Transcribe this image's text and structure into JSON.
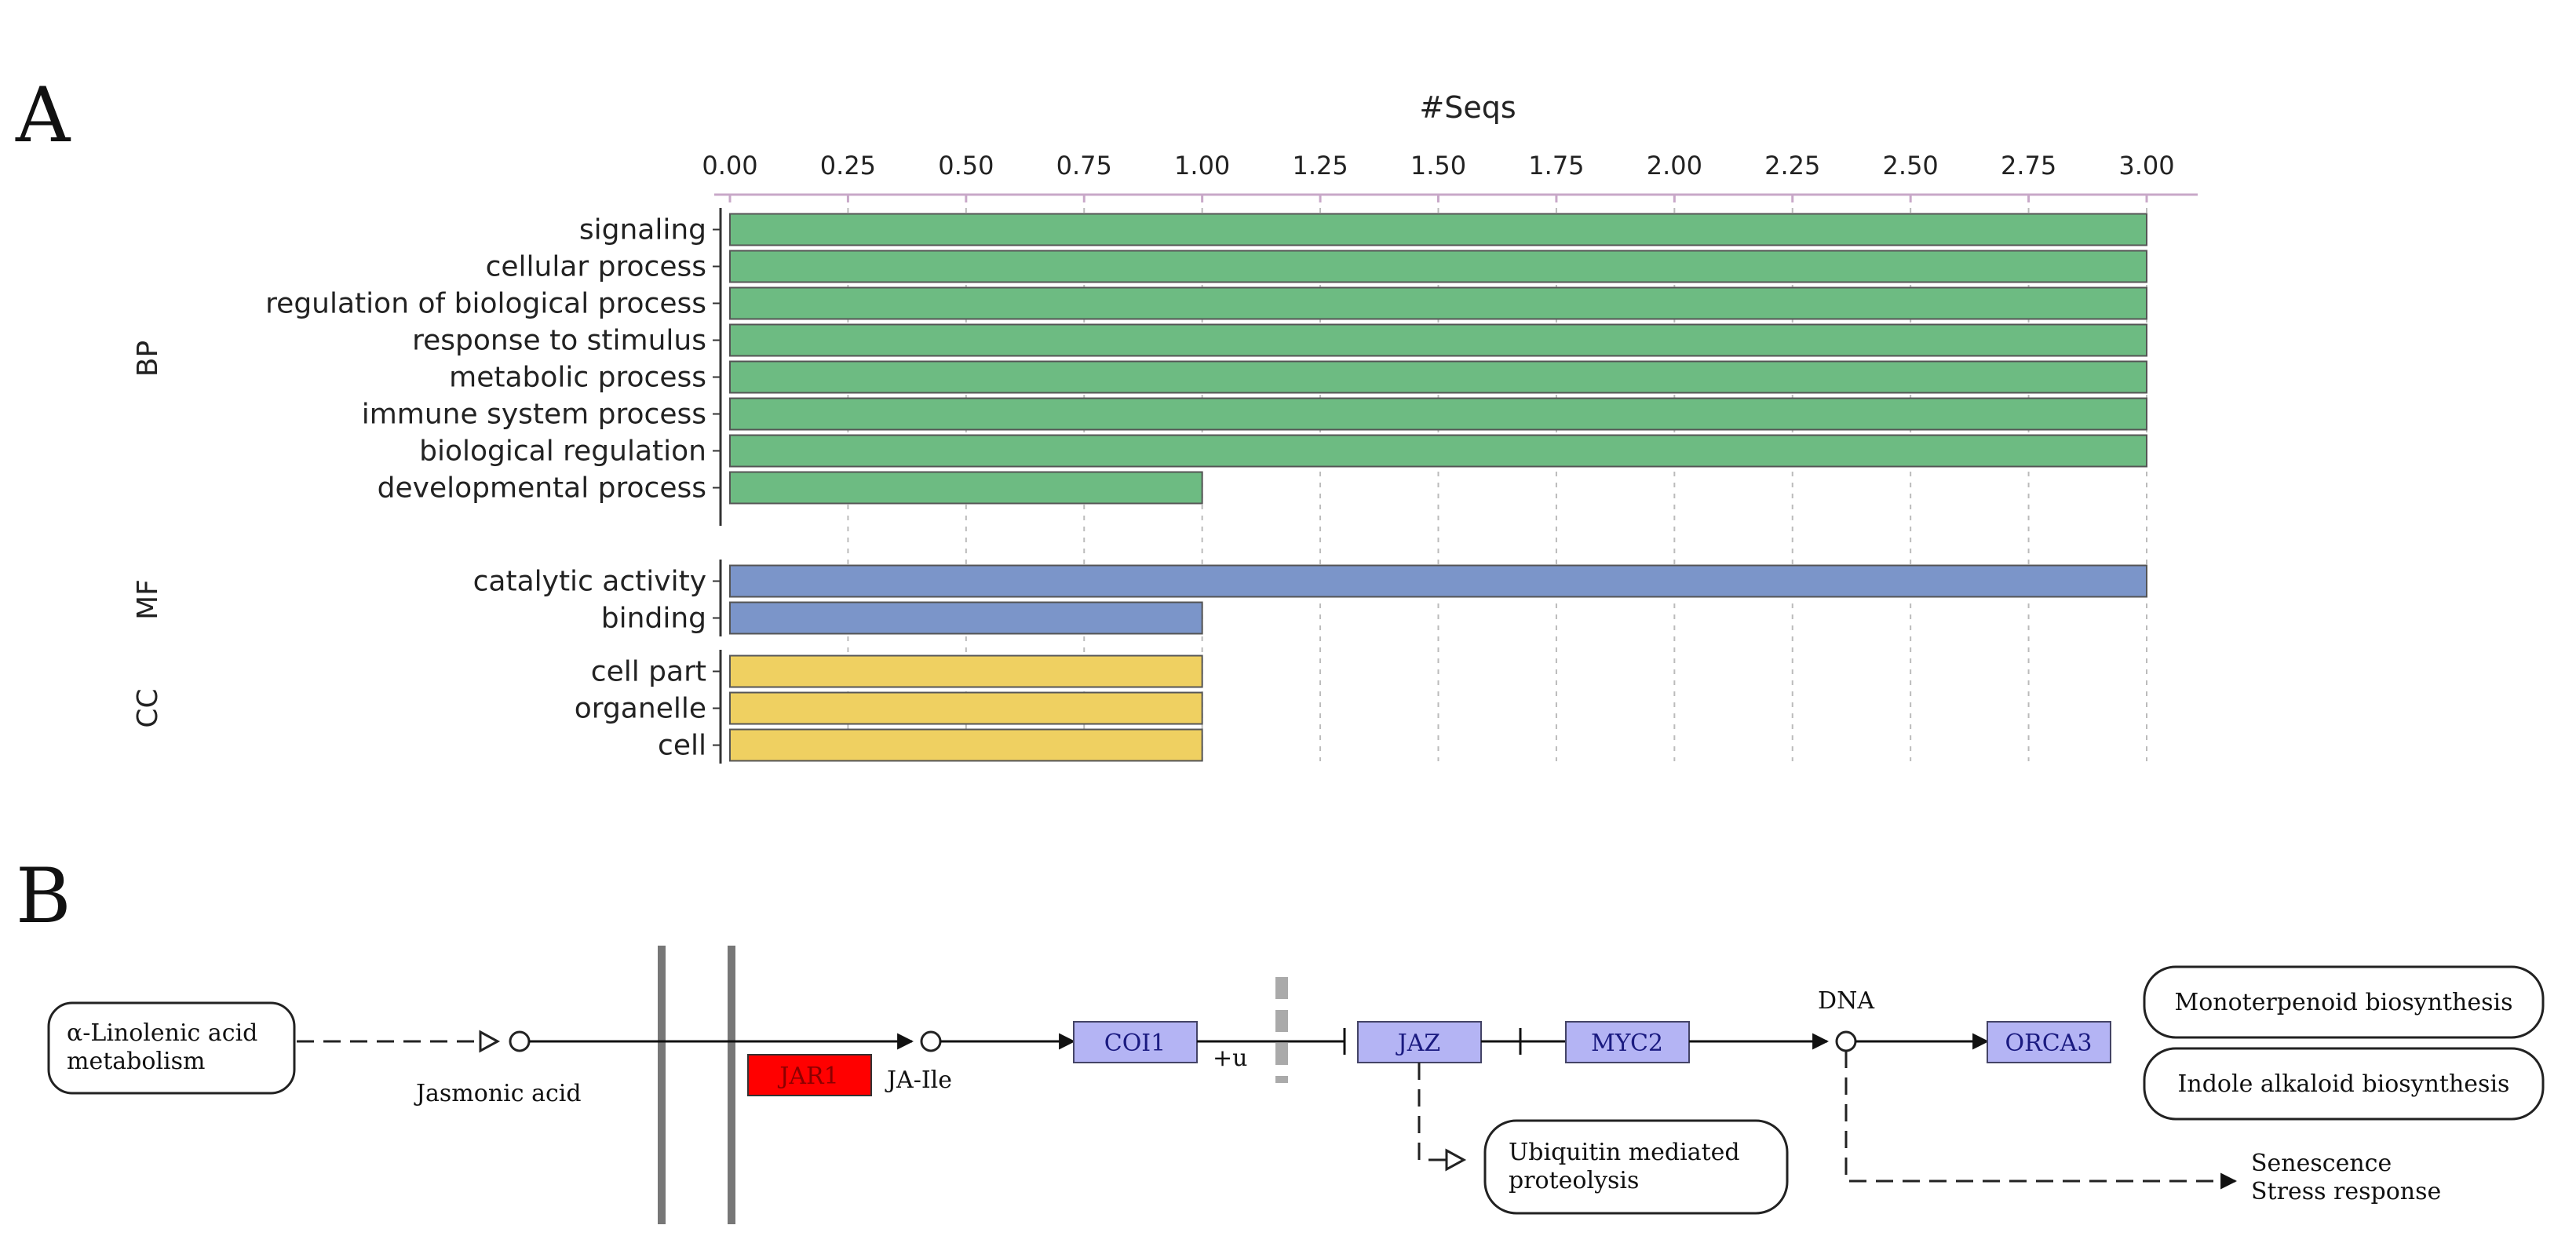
{
  "panel_a_label": "A",
  "panel_b_label": "B",
  "chart_data": {
    "type": "bar",
    "orientation": "horizontal",
    "xlabel": "#Seqs",
    "xlim": [
      0,
      3
    ],
    "xticks": [
      "0.00",
      "0.25",
      "0.50",
      "0.75",
      "1.00",
      "1.25",
      "1.50",
      "1.75",
      "2.00",
      "2.25",
      "2.50",
      "2.75",
      "3.00"
    ],
    "xtick_values": [
      0,
      0.25,
      0.5,
      0.75,
      1,
      1.25,
      1.5,
      1.75,
      2,
      2.25,
      2.5,
      2.75,
      3
    ],
    "gridlines": "vertical dotted",
    "groups": [
      {
        "name": "BP",
        "color": "#6dbb82",
        "categories": [
          "signaling",
          "cellular process",
          "regulation of biological process",
          "response to stimulus",
          "metabolic process",
          "immune system process",
          "biological regulation",
          "developmental process"
        ],
        "values": [
          3,
          3,
          3,
          3,
          3,
          3,
          3,
          1
        ]
      },
      {
        "name": "MF",
        "color": "#7b95c9",
        "categories": [
          "catalytic activity",
          "binding"
        ],
        "values": [
          3,
          1
        ]
      },
      {
        "name": "CC",
        "color": "#efd061",
        "categories": [
          "cell part",
          "organelle",
          "cell"
        ],
        "values": [
          1,
          1,
          1
        ]
      }
    ]
  },
  "pathway": {
    "nodes": {
      "linolenic_line1": "α-Linolenic acid",
      "linolenic_line2": "metabolism",
      "jasmonic_acid": "Jasmonic acid",
      "jar1": "JAR1",
      "ja_ile": "JA-Ile",
      "coi1": "COI1",
      "plus_u": "+u",
      "jaz": "JAZ",
      "myc2": "MYC2",
      "dna": "DNA",
      "orca3": "ORCA3",
      "monoterpenoid": "Monoterpenoid biosynthesis",
      "indole": "Indole alkaloid biosynthesis",
      "ubiquitin_line1": "Ubiquitin mediated",
      "ubiquitin_line2": "proteolysis",
      "senescence": "Senescence",
      "stress": "Stress response"
    },
    "colors": {
      "highlight": "#ff0000",
      "gene_box": "#b4b4f4",
      "gene_border": "#444466"
    }
  }
}
